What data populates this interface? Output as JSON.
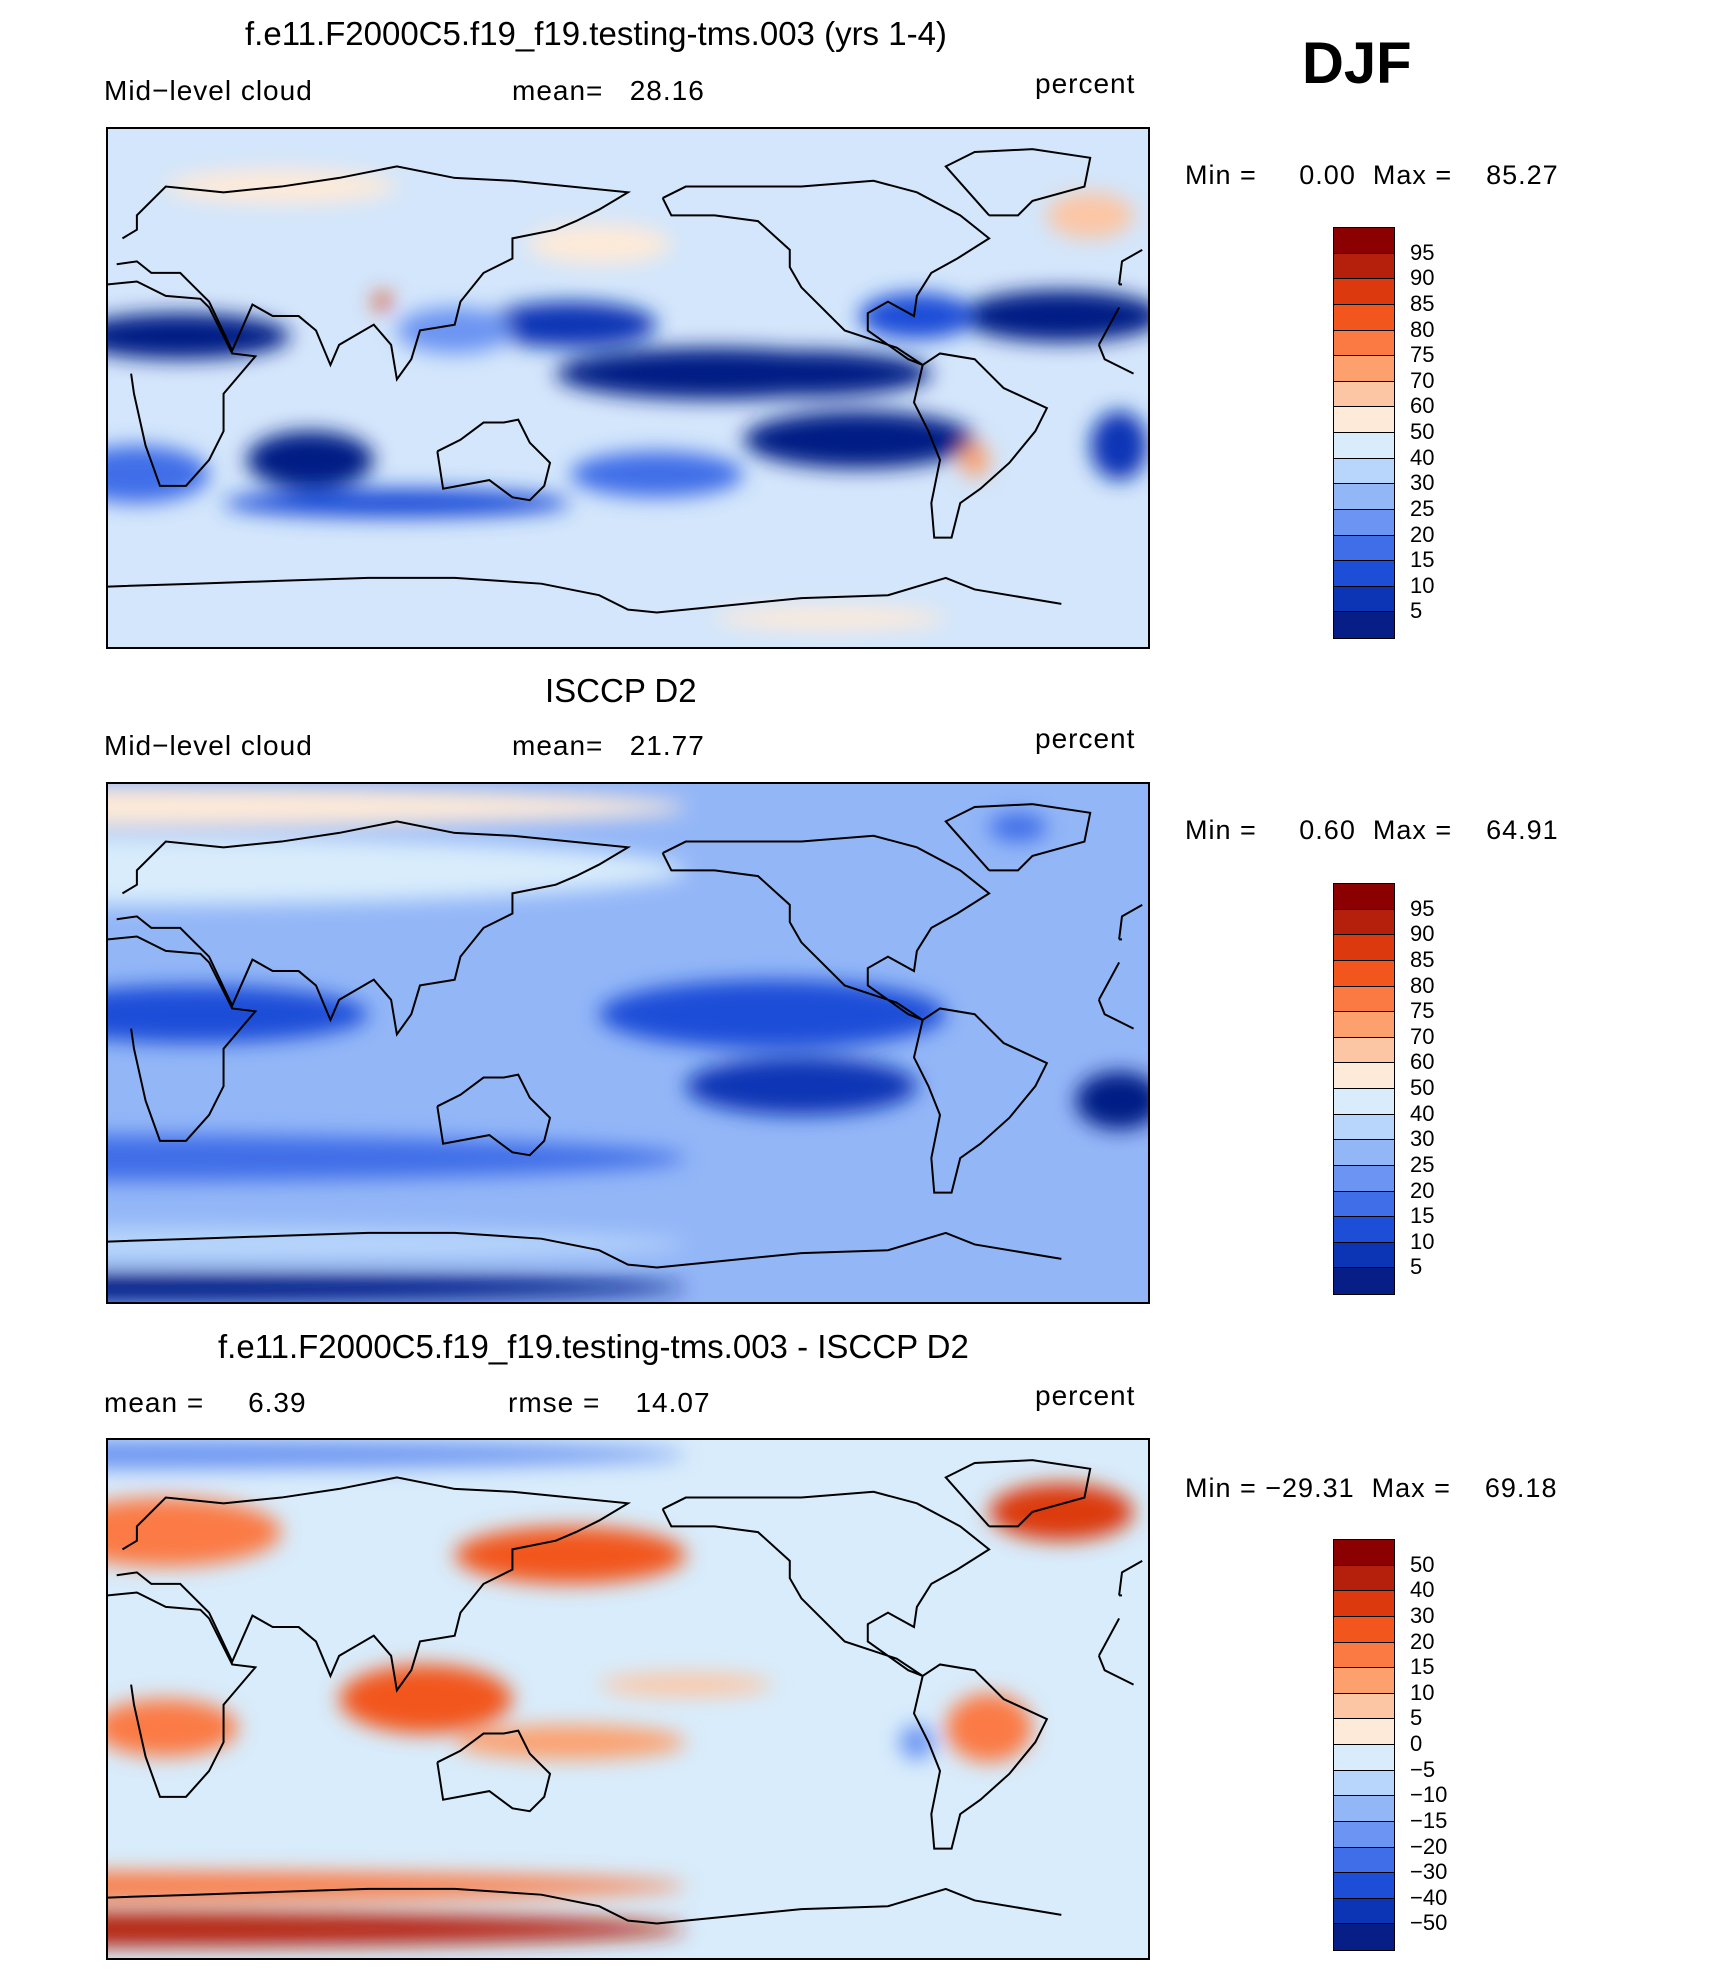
{
  "season": "DJF",
  "land_color": "#000000",
  "panels": [
    {
      "id": "model",
      "title": "f.e11.F2000C5.f19_f19.testing-tms.003 (yrs 1-4)",
      "left_label": "Mid−level cloud",
      "center_label": "mean=   28.16",
      "right_label": "percent",
      "minmax": "Min =     0.00  Max =    85.27",
      "colorbar_labels": [
        "95",
        "90",
        "85",
        "80",
        "75",
        "70",
        "60",
        "50",
        "40",
        "30",
        "25",
        "20",
        "15",
        "10",
        "5"
      ],
      "colorbar_colors": [
        "#8b0000",
        "#b5200c",
        "#dc3a0e",
        "#f2561d",
        "#fb7a44",
        "#fca06e",
        "#fcc6a4",
        "#feead8",
        "#d8ecfb",
        "#b8d6fb",
        "#93b6f7",
        "#6c94f2",
        "#3f6ee8",
        "#1d4ed8",
        "#0b35b5",
        "#061e85"
      ],
      "background": "#d3e6fb",
      "blobs": [
        {
          "lon": -150,
          "lat": 5,
          "rx": 55,
          "ry": 9,
          "level": 15
        },
        {
          "lon": -120,
          "lat": 5,
          "rx": 45,
          "ry": 8,
          "level": 15
        },
        {
          "lon": -30,
          "lat": 25,
          "rx": 35,
          "ry": 9,
          "level": 15
        },
        {
          "lon": 25,
          "lat": 18,
          "rx": 38,
          "ry": 8,
          "level": 15
        },
        {
          "lon": -100,
          "lat": -18,
          "rx": 40,
          "ry": 10,
          "level": 15
        },
        {
          "lon": 70,
          "lat": -25,
          "rx": 22,
          "ry": 10,
          "level": 15
        },
        {
          "lon": 160,
          "lat": 22,
          "rx": 30,
          "ry": 8,
          "level": 14
        },
        {
          "lon": -10,
          "lat": -20,
          "rx": 10,
          "ry": 12,
          "level": 14
        },
        {
          "lon": 100,
          "lat": -40,
          "rx": 60,
          "ry": 5,
          "level": 13
        },
        {
          "lon": -80,
          "lat": 25,
          "rx": 20,
          "ry": 8,
          "level": 13
        },
        {
          "lon": -170,
          "lat": -30,
          "rx": 30,
          "ry": 8,
          "level": 12
        },
        {
          "lon": 10,
          "lat": -30,
          "rx": 25,
          "ry": 10,
          "level": 12
        },
        {
          "lon": 120,
          "lat": 20,
          "rx": 20,
          "ry": 8,
          "level": 11
        },
        {
          "lon": 60,
          "lat": 70,
          "rx": 40,
          "ry": 6,
          "level": 7
        },
        {
          "lon": 170,
          "lat": 50,
          "rx": 25,
          "ry": 7,
          "level": 7
        },
        {
          "lon": -20,
          "lat": 60,
          "rx": 15,
          "ry": 8,
          "level": 6
        },
        {
          "lon": 95,
          "lat": 30,
          "rx": 3,
          "ry": 3,
          "level": 2
        },
        {
          "lon": -110,
          "lat": -80,
          "rx": 40,
          "ry": 4,
          "level": 7
        },
        {
          "lon": -60,
          "lat": -25,
          "rx": 5,
          "ry": 6,
          "level": 5
        }
      ]
    },
    {
      "id": "obs",
      "title": "ISCCP D2",
      "left_label": "Mid−level cloud",
      "center_label": "mean=   21.77",
      "right_label": "percent",
      "minmax": "Min =     0.60  Max =    64.91",
      "colorbar_labels": [
        "95",
        "90",
        "85",
        "80",
        "75",
        "70",
        "60",
        "50",
        "40",
        "30",
        "25",
        "20",
        "15",
        "10",
        "5"
      ],
      "colorbar_colors": [
        "#8b0000",
        "#b5200c",
        "#dc3a0e",
        "#f2561d",
        "#fb7a44",
        "#fca06e",
        "#fcc6a4",
        "#feead8",
        "#d8ecfb",
        "#b8d6fb",
        "#93b6f7",
        "#6c94f2",
        "#3f6ee8",
        "#1d4ed8",
        "#0b35b5",
        "#061e85"
      ],
      "background": "#93b6f7",
      "blobs": [
        {
          "lon": 0,
          "lat": 82,
          "rx": 200,
          "ry": 7,
          "level": 7
        },
        {
          "lon": 0,
          "lat": 60,
          "rx": 200,
          "ry": 12,
          "level": 8
        },
        {
          "lon": -130,
          "lat": 10,
          "rx": 60,
          "ry": 12,
          "level": 13
        },
        {
          "lon": 30,
          "lat": 10,
          "rx": 60,
          "ry": 10,
          "level": 13
        },
        {
          "lon": -120,
          "lat": -15,
          "rx": 40,
          "ry": 10,
          "level": 14
        },
        {
          "lon": -10,
          "lat": -20,
          "rx": 15,
          "ry": 10,
          "level": 15
        },
        {
          "lon": 0,
          "lat": -40,
          "rx": 200,
          "ry": 8,
          "level": 12
        },
        {
          "lon": 0,
          "lat": -85,
          "rx": 200,
          "ry": 5,
          "level": 15
        },
        {
          "lon": 0,
          "lat": -70,
          "rx": 200,
          "ry": 6,
          "level": 9
        },
        {
          "lon": -45,
          "lat": 75,
          "rx": 10,
          "ry": 5,
          "level": 12
        }
      ]
    },
    {
      "id": "diff",
      "title": "f.e11.F2000C5.f19_f19.testing-tms.003 - ISCCP D2",
      "left_label": "mean =     6.39",
      "center_label": "rmse =    14.07",
      "right_label": "percent",
      "minmax": "Min = −29.31  Max =    69.18",
      "colorbar_labels": [
        "50",
        "40",
        "30",
        "20",
        "15",
        "10",
        "5",
        "0",
        "−5",
        "−10",
        "−15",
        "−20",
        "−30",
        "−40",
        "−50"
      ],
      "colorbar_colors": [
        "#8b0000",
        "#b5200c",
        "#dc3a0e",
        "#f2561d",
        "#fb7a44",
        "#fca06e",
        "#fcc6a4",
        "#feead8",
        "#d8ecfb",
        "#b8d6fb",
        "#93b6f7",
        "#6c94f2",
        "#3f6ee8",
        "#1d4ed8",
        "#0b35b5",
        "#061e85"
      ],
      "background": "#d8ecfb",
      "blobs": [
        {
          "lon": 0,
          "lat": 85,
          "rx": 200,
          "ry": 5,
          "level": 11
        },
        {
          "lon": 20,
          "lat": 58,
          "rx": 40,
          "ry": 12,
          "level": 4
        },
        {
          "lon": 160,
          "lat": 50,
          "rx": 40,
          "ry": 10,
          "level": 3
        },
        {
          "lon": -30,
          "lat": 65,
          "rx": 25,
          "ry": 10,
          "level": 2
        },
        {
          "lon": 110,
          "lat": 0,
          "rx": 30,
          "ry": 12,
          "level": 3
        },
        {
          "lon": 20,
          "lat": -10,
          "rx": 25,
          "ry": 10,
          "level": 4
        },
        {
          "lon": -55,
          "lat": -10,
          "rx": 15,
          "ry": 12,
          "level": 4
        },
        {
          "lon": 160,
          "lat": -15,
          "rx": 40,
          "ry": 6,
          "level": 5
        },
        {
          "lon": 0,
          "lat": -80,
          "rx": 200,
          "ry": 6,
          "level": 1
        },
        {
          "lon": 0,
          "lat": -65,
          "rx": 200,
          "ry": 5,
          "level": 4
        },
        {
          "lon": -160,
          "lat": 5,
          "rx": 30,
          "ry": 4,
          "level": 6
        },
        {
          "lon": -80,
          "lat": -15,
          "rx": 6,
          "ry": 6,
          "level": 11
        }
      ]
    }
  ]
}
